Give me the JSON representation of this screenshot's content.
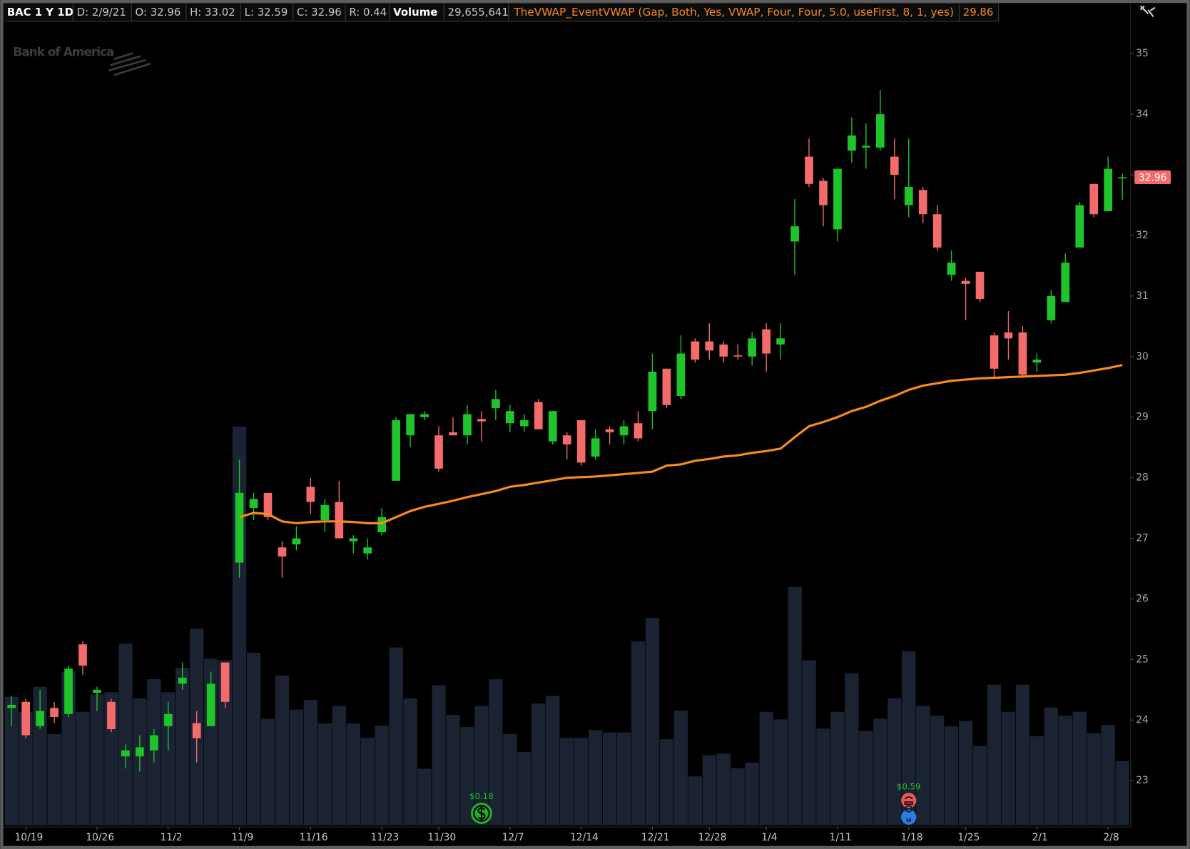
{
  "chart_data": {
    "type": "candlestick",
    "header": [
      "BAC 1 Y 1D",
      "D: 2/9/21",
      "O: 32.96",
      "H: 33.02",
      "L: 32.59",
      "C: 32.96",
      "R: 0.44",
      "Volume",
      "29,655,641"
    ],
    "watermark": "Bank of America",
    "categories": [
      null,
      "10/19",
      null,
      null,
      null,
      null,
      "10/26",
      null,
      null,
      null,
      null,
      "11/2",
      null,
      null,
      null,
      null,
      "11/9",
      null,
      null,
      null,
      null,
      "11/16",
      null,
      null,
      null,
      null,
      "11/23",
      null,
      null,
      null,
      "11/30",
      null,
      null,
      null,
      null,
      "12/7",
      null,
      null,
      null,
      null,
      "12/14",
      null,
      null,
      null,
      null,
      "12/21",
      null,
      null,
      null,
      "12/28",
      null,
      null,
      null,
      "1/4",
      null,
      null,
      null,
      null,
      "1/11",
      null,
      null,
      null,
      null,
      "1/18",
      null,
      null,
      null,
      "1/25",
      null,
      null,
      null,
      null,
      "2/1",
      null,
      null,
      null,
      null,
      "2/8",
      null
    ],
    "open": [
      24.2,
      24.3,
      23.9,
      24.2,
      24.1,
      25.25,
      24.45,
      24.3,
      23.4,
      23.4,
      23.5,
      23.9,
      24.6,
      23.95,
      23.9,
      24.95,
      26.6,
      27.5,
      27.75,
      26.85,
      26.9,
      27.85,
      27.3,
      27.6,
      26.95,
      26.75,
      27.1,
      27.95,
      28.7,
      29.0,
      28.7,
      28.75,
      28.7,
      28.97,
      29.15,
      28.9,
      28.85,
      29.25,
      28.6,
      28.7,
      28.95,
      28.35,
      28.8,
      28.7,
      28.9,
      29.1,
      29.8,
      29.35,
      30.25,
      30.25,
      30.2,
      30.02,
      30.0,
      30.45,
      30.2,
      31.9,
      33.3,
      32.9,
      32.1,
      33.4,
      33.45,
      33.45,
      33.3,
      32.5,
      32.75,
      32.35,
      31.35,
      31.25,
      31.4,
      30.35,
      30.4,
      30.4,
      29.9,
      30.6,
      30.9,
      31.8,
      32.85,
      32.4,
      32.96
    ],
    "high": [
      24.4,
      24.35,
      24.5,
      24.3,
      24.9,
      25.3,
      24.55,
      24.35,
      23.6,
      23.75,
      23.85,
      24.3,
      24.95,
      24.15,
      24.8,
      24.95,
      28.3,
      27.75,
      27.75,
      26.95,
      27.2,
      28.0,
      27.65,
      27.95,
      27.05,
      27.0,
      27.5,
      29.0,
      29.05,
      29.1,
      28.85,
      29.0,
      29.2,
      29.1,
      29.45,
      29.2,
      29.05,
      29.3,
      29.1,
      28.75,
      28.95,
      28.8,
      28.85,
      28.95,
      29.1,
      30.05,
      29.8,
      30.35,
      30.3,
      30.55,
      30.25,
      30.2,
      30.4,
      30.55,
      30.55,
      32.6,
      33.6,
      32.95,
      33.1,
      33.95,
      33.85,
      34.4,
      33.6,
      33.6,
      32.8,
      32.5,
      31.75,
      31.3,
      31.4,
      30.4,
      30.75,
      30.5,
      30.05,
      31.1,
      31.7,
      32.55,
      32.85,
      33.3,
      33.02
    ],
    "low": [
      23.9,
      23.7,
      23.85,
      23.95,
      24.05,
      24.75,
      24.15,
      23.8,
      23.2,
      23.15,
      23.3,
      23.5,
      24.5,
      23.3,
      23.9,
      24.2,
      26.35,
      27.3,
      27.3,
      26.35,
      26.8,
      27.4,
      27.1,
      27.0,
      26.75,
      26.65,
      27.05,
      27.95,
      28.5,
      28.95,
      28.1,
      28.7,
      28.55,
      28.6,
      28.95,
      28.75,
      28.75,
      28.8,
      28.55,
      28.3,
      28.2,
      28.3,
      28.55,
      28.55,
      28.6,
      28.8,
      29.15,
      29.3,
      29.9,
      29.95,
      29.9,
      29.95,
      29.85,
      29.75,
      29.95,
      31.35,
      32.8,
      32.15,
      31.9,
      33.2,
      33.1,
      33.4,
      32.6,
      32.3,
      32.2,
      31.75,
      31.25,
      30.6,
      30.9,
      29.65,
      29.95,
      29.65,
      29.75,
      30.55,
      30.9,
      31.8,
      32.3,
      32.4,
      32.59
    ],
    "close": [
      24.25,
      23.75,
      24.15,
      24.05,
      24.85,
      24.9,
      24.5,
      23.85,
      23.5,
      23.55,
      23.75,
      24.1,
      24.7,
      23.7,
      24.6,
      24.3,
      27.75,
      27.65,
      27.35,
      26.7,
      27.0,
      27.6,
      27.55,
      27.0,
      27.0,
      26.85,
      27.35,
      28.95,
      29.05,
      29.05,
      28.15,
      28.7,
      29.05,
      28.93,
      29.3,
      29.1,
      28.95,
      28.8,
      29.1,
      28.55,
      28.25,
      28.65,
      28.75,
      28.85,
      28.65,
      29.75,
      29.2,
      30.05,
      29.95,
      30.1,
      30.0,
      30.0,
      30.3,
      30.05,
      30.3,
      32.15,
      32.85,
      32.5,
      33.1,
      33.65,
      33.48,
      34.0,
      33.0,
      32.8,
      32.35,
      31.8,
      31.55,
      31.2,
      30.95,
      29.8,
      30.3,
      29.7,
      29.95,
      31.0,
      31.55,
      32.5,
      32.35,
      33.1,
      32.96
    ],
    "volume": [
      59300000,
      52400000,
      63900000,
      42200000,
      70800000,
      52400000,
      60400000,
      61400000,
      83800000,
      58600000,
      67400000,
      61400000,
      72600000,
      90700000,
      76800000,
      76100000,
      183600000,
      79600000,
      49200000,
      69100000,
      53400000,
      57900000,
      47100000,
      55100000,
      47100000,
      40500000,
      46100000,
      82000000,
      58600000,
      26200000,
      64600000,
      51000000,
      45400000,
      55100000,
      67400000,
      42200000,
      33900000,
      56200000,
      59700000,
      40500000,
      40500000,
      44000000,
      42900000,
      42900000,
      84800000,
      95600000,
      39800000,
      53000000,
      22700000,
      32500000,
      33200000,
      26500000,
      29000000,
      52400000,
      48900000,
      109900000,
      76100000,
      44700000,
      52400000,
      70100000,
      43600000,
      49200000,
      58600000,
      80300000,
      55100000,
      50600000,
      45700000,
      48200000,
      36600000,
      64900000,
      52400000,
      64900000,
      41200000,
      54400000,
      50600000,
      52400000,
      42600000,
      46400000,
      29655641
    ],
    "vwap": {
      "name": "TheVWAP_EventVWAP (Gap, Both, Yes, VWAP, Four, Four, 5.0, useFirst, 8, 1, yes)",
      "reading": "29.86",
      "color": "#f7891f",
      "values": [
        null,
        null,
        null,
        null,
        null,
        null,
        null,
        null,
        null,
        null,
        null,
        null,
        null,
        null,
        null,
        null,
        27.35,
        27.42,
        27.4,
        27.28,
        27.25,
        27.27,
        27.28,
        27.28,
        27.27,
        27.25,
        27.25,
        27.35,
        27.45,
        27.52,
        27.57,
        27.62,
        27.68,
        27.73,
        27.78,
        27.85,
        27.88,
        27.92,
        27.96,
        28.0,
        28.01,
        28.02,
        28.04,
        28.06,
        28.08,
        28.1,
        28.2,
        28.22,
        28.28,
        28.31,
        28.35,
        28.37,
        28.41,
        28.44,
        28.48,
        28.67,
        28.85,
        28.92,
        29.0,
        29.1,
        29.17,
        29.27,
        29.35,
        29.45,
        29.52,
        29.56,
        29.6,
        29.62,
        29.64,
        29.65,
        29.66,
        29.67,
        29.68,
        29.69,
        29.7,
        29.73,
        29.77,
        29.81,
        29.86
      ]
    },
    "last_price_label": "32.96",
    "events": [
      {
        "label": "$0.18",
        "kind": "dividend"
      },
      {
        "label": "$0.59",
        "kind": "earnings"
      }
    ],
    "up_color": "#1fc42a",
    "down_color": "#f36b6b",
    "volume_color": "#1b2232",
    "ylim": [
      22.26,
      35.51
    ],
    "yticks": [
      23,
      24,
      25,
      26,
      27,
      28,
      29,
      30,
      31,
      32,
      33,
      34,
      35
    ],
    "grid": false
  }
}
